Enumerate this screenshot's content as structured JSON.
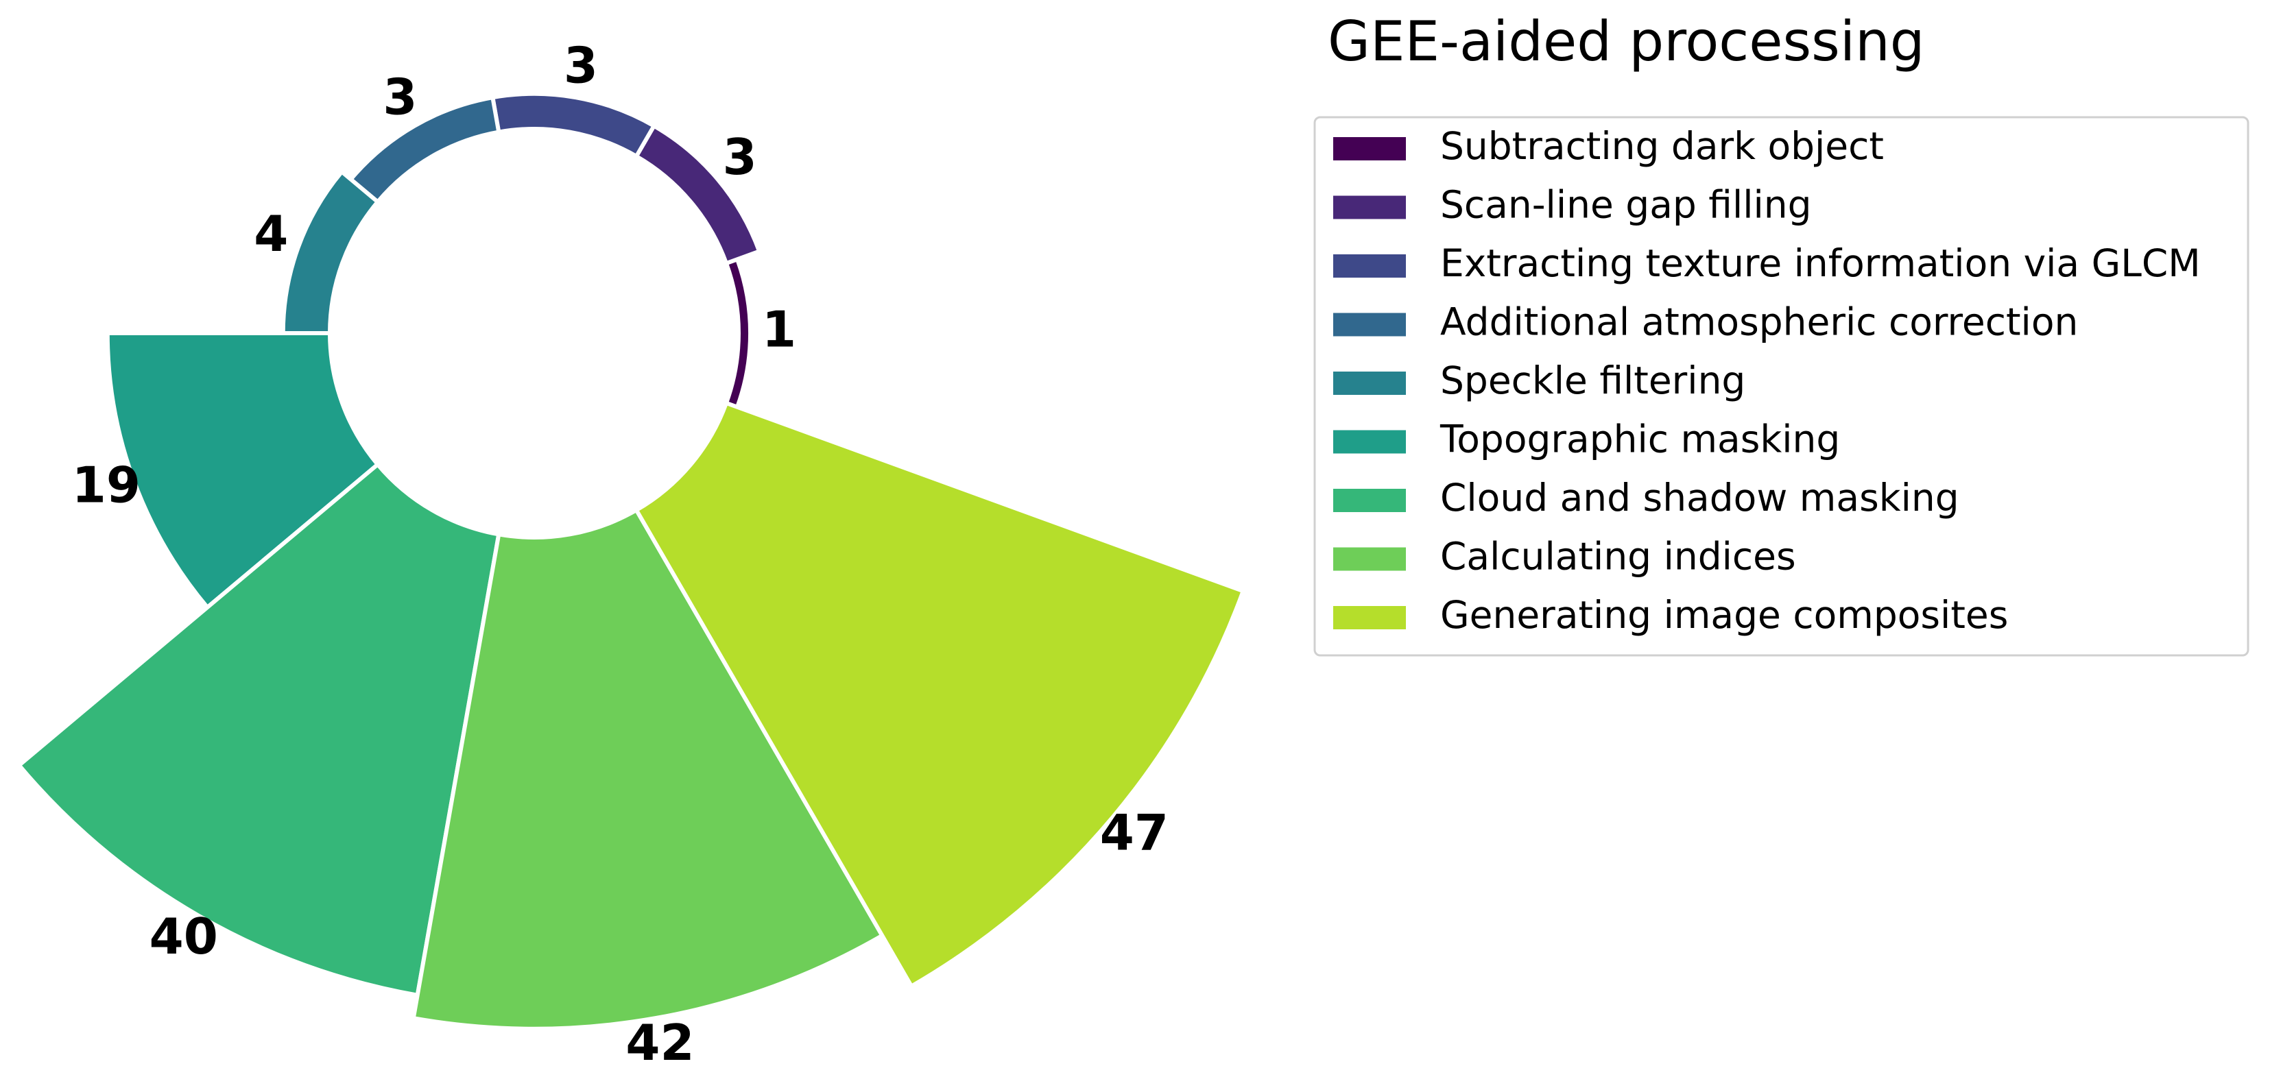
{
  "chart_data": {
    "type": "rose",
    "title": "GEE-aided processing",
    "categories": [
      "Subtracting dark object",
      "Scan-line gap filling",
      "Extracting texture information via GLCM",
      "Additional atmospheric correction",
      "Speckle filtering",
      "Topographic masking",
      "Cloud and shadow masking",
      "Calculating indices",
      "Generating image composites"
    ],
    "values": [
      1,
      3,
      3,
      3,
      4,
      19,
      40,
      42,
      47
    ],
    "colors": [
      "#440154",
      "#482878",
      "#3e4989",
      "#31688e",
      "#26828e",
      "#1f9e89",
      "#35b779",
      "#6ece58",
      "#b5de2b"
    ],
    "legend": "upper right"
  }
}
